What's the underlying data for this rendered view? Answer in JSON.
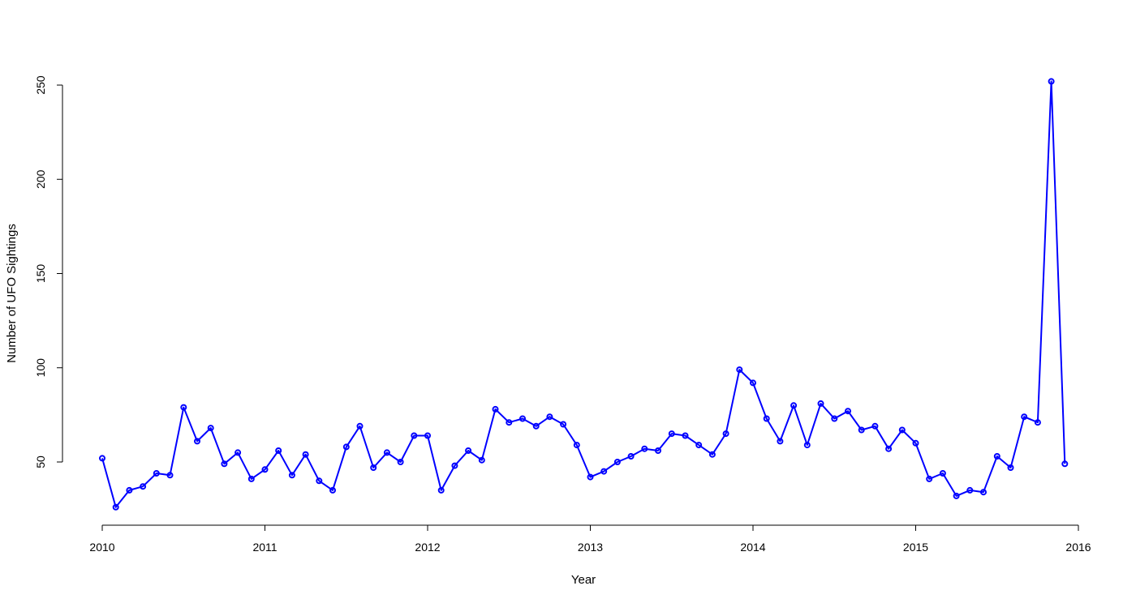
{
  "chart_data": {
    "type": "line",
    "title": "",
    "xlabel": "Year",
    "ylabel": "Number of UFO Sightings",
    "xlim": [
      2010,
      2016
    ],
    "ylim": [
      22,
      252
    ],
    "x_ticks": [
      "2010",
      "2011",
      "2012",
      "2013",
      "2014",
      "2015",
      "2016"
    ],
    "y_ticks": [
      "50",
      "100",
      "150",
      "200",
      "250"
    ],
    "grid": false,
    "legend": "none",
    "colors": {
      "line": "#0000ff",
      "axis": "#000000"
    },
    "series": [
      {
        "x": [
          "2010-01",
          "2010-02",
          "2010-03",
          "2010-04",
          "2010-05",
          "2010-06",
          "2010-07",
          "2010-08",
          "2010-09",
          "2010-10",
          "2010-11",
          "2010-12",
          "2011-01",
          "2011-02",
          "2011-03",
          "2011-04",
          "2011-05",
          "2011-06",
          "2011-07",
          "2011-08",
          "2011-09",
          "2011-10",
          "2011-11",
          "2011-12",
          "2012-01",
          "2012-02",
          "2012-03",
          "2012-04",
          "2012-05",
          "2012-06",
          "2012-07",
          "2012-08",
          "2012-09",
          "2012-10",
          "2012-11",
          "2012-12",
          "2013-01",
          "2013-02",
          "2013-03",
          "2013-04",
          "2013-05",
          "2013-06",
          "2013-07",
          "2013-08",
          "2013-09",
          "2013-10",
          "2013-11",
          "2013-12",
          "2014-01",
          "2014-02",
          "2014-03",
          "2014-04",
          "2014-05",
          "2014-06",
          "2014-07",
          "2014-08",
          "2014-09",
          "2014-10",
          "2014-11",
          "2014-12",
          "2015-01",
          "2015-02",
          "2015-03",
          "2015-04",
          "2015-05",
          "2015-06",
          "2015-07",
          "2015-08",
          "2015-09",
          "2015-10",
          "2015-11",
          "2015-12"
        ],
        "values": [
          52,
          26,
          35,
          37,
          44,
          43,
          79,
          61,
          68,
          49,
          55,
          41,
          46,
          56,
          43,
          54,
          40,
          35,
          58,
          69,
          47,
          55,
          50,
          64,
          64,
          35,
          48,
          56,
          51,
          78,
          71,
          73,
          69,
          74,
          70,
          59,
          42,
          45,
          50,
          53,
          57,
          56,
          65,
          64,
          59,
          54,
          65,
          99,
          92,
          73,
          61,
          80,
          59,
          81,
          73,
          77,
          67,
          69,
          57,
          67,
          60,
          41,
          44,
          32,
          35,
          34,
          53,
          47,
          74,
          71,
          252,
          49
        ]
      }
    ]
  }
}
